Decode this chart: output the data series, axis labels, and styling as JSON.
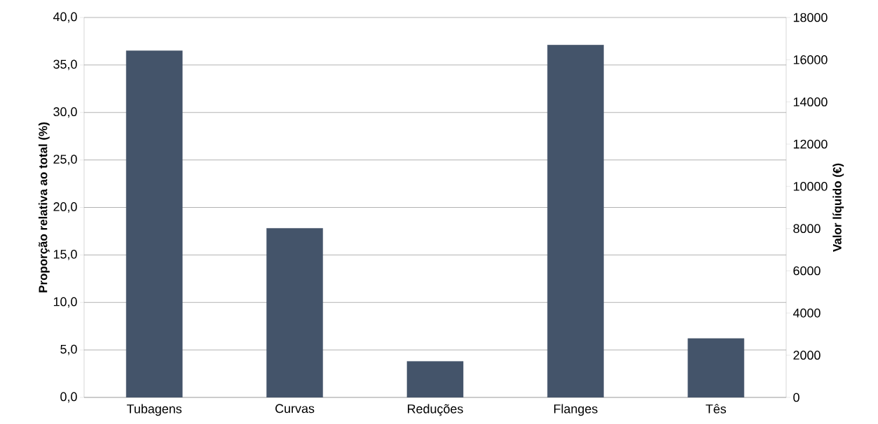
{
  "chart_data": {
    "type": "bar",
    "ylabel": "Proporção relativa ao total (%)",
    "y2label": "Valor líquido (€)",
    "categories": [
      "Tubagens",
      "Curvas",
      "Reduções",
      "Flanges",
      "Tês"
    ],
    "values": [
      36.5,
      17.8,
      3.8,
      37.1,
      6.2
    ],
    "color": "#44546a",
    "ylim": [
      0,
      40
    ],
    "yticks": [
      {
        "value": 0,
        "label": "0,0"
      },
      {
        "value": 5,
        "label": "5,0"
      },
      {
        "value": 10,
        "label": "10,0"
      },
      {
        "value": 15,
        "label": "15,0"
      },
      {
        "value": 20,
        "label": "20,0"
      },
      {
        "value": 25,
        "label": "25,0"
      },
      {
        "value": 30,
        "label": "30,0"
      },
      {
        "value": 35,
        "label": "35,0"
      },
      {
        "value": 40,
        "label": "40,0"
      }
    ],
    "y2lim": [
      0,
      18000
    ],
    "y2ticks": [
      0,
      2000,
      4000,
      6000,
      8000,
      10000,
      12000,
      14000,
      16000,
      18000
    ],
    "grid": "y"
  }
}
